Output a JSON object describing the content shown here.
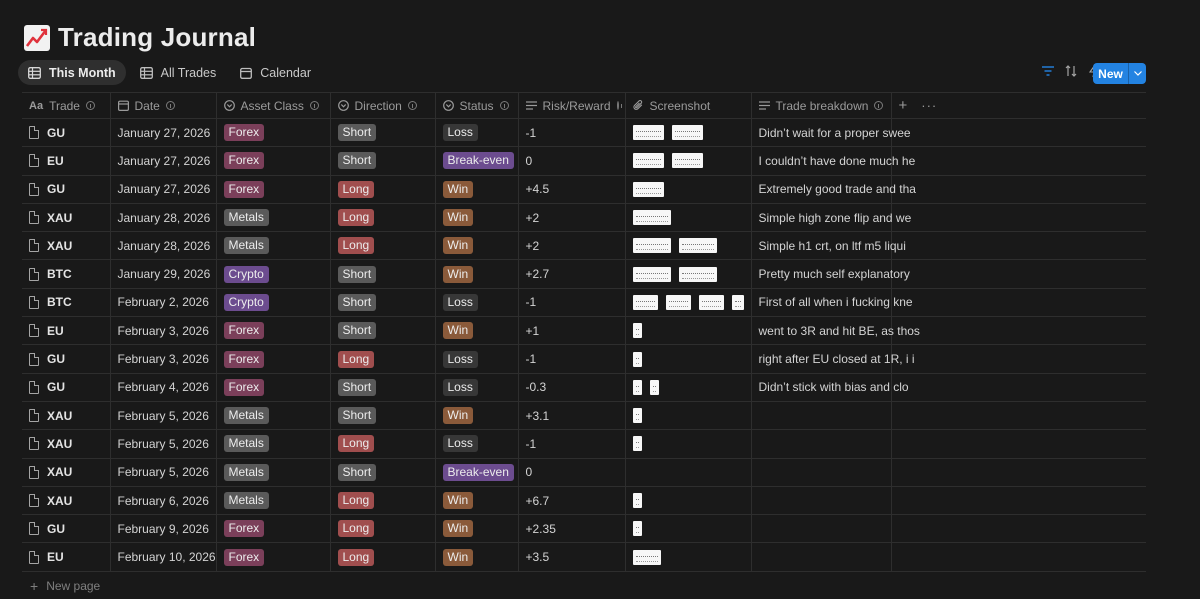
{
  "page": {
    "title": "Trading Journal",
    "icon": "chart-increasing-icon"
  },
  "views": [
    {
      "label": "This Month",
      "icon": "table-icon",
      "active": true
    },
    {
      "label": "All Trades",
      "icon": "table-icon",
      "active": false
    },
    {
      "label": "Calendar",
      "icon": "calendar-icon",
      "active": false
    }
  ],
  "toolbar": {
    "new_label": "New",
    "accent": "#2383e2"
  },
  "columns": [
    {
      "label": "Trade",
      "icon": "title-icon"
    },
    {
      "label": "Date",
      "icon": "calendar-icon"
    },
    {
      "label": "Asset Class",
      "icon": "select-icon"
    },
    {
      "label": "Direction",
      "icon": "select-icon"
    },
    {
      "label": "Status",
      "icon": "select-icon"
    },
    {
      "label": "Risk/Reward",
      "icon": "text-icon"
    },
    {
      "label": "Screenshot",
      "icon": "attachment-icon"
    },
    {
      "label": "Trade breakdown",
      "icon": "text-icon"
    }
  ],
  "tag_colors": {
    "Forex": "#7b3f5a",
    "Metals": "#5a5a5a",
    "Crypto": "#6c4c8f",
    "Short": "#5a5a5a",
    "Long": "#a04e4e",
    "Loss": "#373737",
    "Win": "#8a5a3a",
    "Break-even": "#6c4c8f"
  },
  "rows": [
    {
      "trade": "GU",
      "date": "January 27, 2026",
      "asset": "Forex",
      "direction": "Short",
      "status": "Loss",
      "rr": "-1",
      "shots": [
        [
          31,
          15
        ],
        [
          31,
          15
        ]
      ],
      "breakdown": "Didn’t wait for a proper swee"
    },
    {
      "trade": "EU",
      "date": "January 27, 2026",
      "asset": "Forex",
      "direction": "Short",
      "status": "Break-even",
      "rr": "0",
      "shots": [
        [
          31,
          15
        ],
        [
          31,
          15
        ]
      ],
      "breakdown": "I couldn’t have done much he"
    },
    {
      "trade": "GU",
      "date": "January 27, 2026",
      "asset": "Forex",
      "direction": "Long",
      "status": "Win",
      "rr": "+4.5",
      "shots": [
        [
          31,
          15
        ]
      ],
      "breakdown": "Extremely good trade and tha"
    },
    {
      "trade": "XAU",
      "date": "January 28, 2026",
      "asset": "Metals",
      "direction": "Long",
      "status": "Win",
      "rr": "+2",
      "shots": [
        [
          38,
          15
        ]
      ],
      "breakdown": "Simple high zone flip and we"
    },
    {
      "trade": "XAU",
      "date": "January 28, 2026",
      "asset": "Metals",
      "direction": "Long",
      "status": "Win",
      "rr": "+2",
      "shots": [
        [
          38,
          15
        ],
        [
          38,
          15
        ]
      ],
      "breakdown": "Simple h1 crt, on ltf m5 liqui"
    },
    {
      "trade": "BTC",
      "date": "January 29, 2026",
      "asset": "Crypto",
      "direction": "Short",
      "status": "Win",
      "rr": "+2.7",
      "shots": [
        [
          38,
          15
        ],
        [
          38,
          15
        ]
      ],
      "breakdown": "Pretty much self explanatory"
    },
    {
      "trade": "BTC",
      "date": "February 2, 2026",
      "asset": "Crypto",
      "direction": "Short",
      "status": "Loss",
      "rr": "-1",
      "shots": [
        [
          31,
          15
        ],
        [
          31,
          15
        ],
        [
          31,
          15
        ],
        [
          14,
          15
        ]
      ],
      "breakdown": "First of all when i fucking kne"
    },
    {
      "trade": "EU",
      "date": "February 3, 2026",
      "asset": "Forex",
      "direction": "Short",
      "status": "Win",
      "rr": "+1",
      "shots": [
        [
          9,
          15
        ]
      ],
      "breakdown": "went to 3R and hit BE, as thos"
    },
    {
      "trade": "GU",
      "date": "February 3, 2026",
      "asset": "Forex",
      "direction": "Long",
      "status": "Loss",
      "rr": "-1",
      "shots": [
        [
          9,
          15
        ]
      ],
      "breakdown": "right after EU closed at 1R, i i"
    },
    {
      "trade": "GU",
      "date": "February 4, 2026",
      "asset": "Forex",
      "direction": "Short",
      "status": "Loss",
      "rr": "-0.3",
      "shots": [
        [
          9,
          15
        ],
        [
          9,
          15
        ]
      ],
      "breakdown": "Didn’t stick with bias and clo"
    },
    {
      "trade": "XAU",
      "date": "February 5, 2026",
      "asset": "Metals",
      "direction": "Short",
      "status": "Win",
      "rr": "+3.1",
      "shots": [
        [
          9,
          15
        ]
      ],
      "breakdown": ""
    },
    {
      "trade": "XAU",
      "date": "February 5, 2026",
      "asset": "Metals",
      "direction": "Long",
      "status": "Loss",
      "rr": "-1",
      "shots": [
        [
          9,
          15
        ]
      ],
      "breakdown": ""
    },
    {
      "trade": "XAU",
      "date": "February 5, 2026",
      "asset": "Metals",
      "direction": "Short",
      "status": "Break-even",
      "rr": "0",
      "shots": [],
      "breakdown": ""
    },
    {
      "trade": "XAU",
      "date": "February 6, 2026",
      "asset": "Metals",
      "direction": "Long",
      "status": "Win",
      "rr": "+6.7",
      "shots": [
        [
          9,
          15
        ]
      ],
      "breakdown": ""
    },
    {
      "trade": "GU",
      "date": "February 9, 2026",
      "asset": "Forex",
      "direction": "Long",
      "status": "Win",
      "rr": "+2.35",
      "shots": [
        [
          9,
          15
        ]
      ],
      "breakdown": ""
    },
    {
      "trade": "EU",
      "date": "February 10, 2026",
      "asset": "Forex",
      "direction": "Long",
      "status": "Win",
      "rr": "+3.5",
      "shots": [
        [
          28,
          15
        ]
      ],
      "breakdown": ""
    }
  ],
  "footer": {
    "new_page_label": "New page"
  }
}
